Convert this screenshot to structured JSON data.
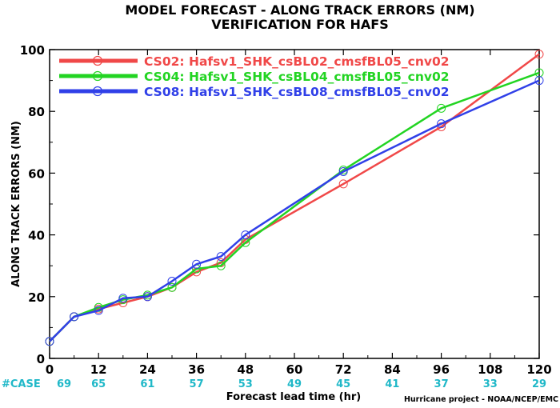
{
  "chart_data": {
    "type": "line",
    "title": "MODEL FORECAST - ALONG TRACK ERRORS (NM)",
    "subtitle": "VERIFICATION FOR HAFS",
    "xlabel": "Forecast lead time (hr)",
    "ylabel": "ALONG TRACK ERRORS (NM)",
    "xlim": [
      0,
      120
    ],
    "ylim": [
      0,
      100
    ],
    "xticks": [
      0,
      12,
      24,
      36,
      48,
      60,
      72,
      84,
      96,
      108,
      120
    ],
    "yticks": [
      0,
      20,
      40,
      60,
      80,
      100
    ],
    "grid": false,
    "legend_position": "top-left",
    "footer": "Hurricane project - NOAA/NCEP/EMC",
    "case_counts": {
      "label": "#CASE",
      "x": [
        0,
        12,
        24,
        36,
        48,
        60,
        72,
        84,
        96,
        108,
        120
      ],
      "values": [
        69,
        65,
        61,
        57,
        53,
        49,
        45,
        41,
        37,
        33,
        29
      ],
      "color": "#20b8c8"
    },
    "series": [
      {
        "name": "CS02: Hafsv1_SHK_csBL02_cmsfBL05_cnv02",
        "color": "#f04848",
        "x": [
          0,
          6,
          12,
          18,
          24,
          30,
          36,
          42,
          48,
          72,
          96,
          120
        ],
        "values": [
          5.5,
          13.5,
          16,
          18,
          20,
          23,
          28,
          31,
          38.5,
          56.5,
          75,
          98.5
        ]
      },
      {
        "name": "CS04: Hafsv1_SHK_csBL04_cmsfBL05_cnv02",
        "color": "#22d422",
        "x": [
          0,
          6,
          12,
          18,
          24,
          30,
          36,
          42,
          48,
          72,
          96,
          120
        ],
        "values": [
          5.5,
          13.5,
          16.5,
          19,
          20.5,
          23,
          29,
          30,
          37.5,
          61,
          81,
          92.5
        ]
      },
      {
        "name": "CS08: Hafsv1_SHK_csBL08_cmsfBL05_cnv02",
        "color": "#3040e8",
        "x": [
          0,
          6,
          12,
          18,
          24,
          30,
          36,
          42,
          48,
          72,
          96,
          120
        ],
        "values": [
          5.5,
          13.5,
          15.5,
          19.5,
          20,
          25,
          30.5,
          33,
          40,
          60.5,
          76,
          90
        ]
      }
    ]
  }
}
